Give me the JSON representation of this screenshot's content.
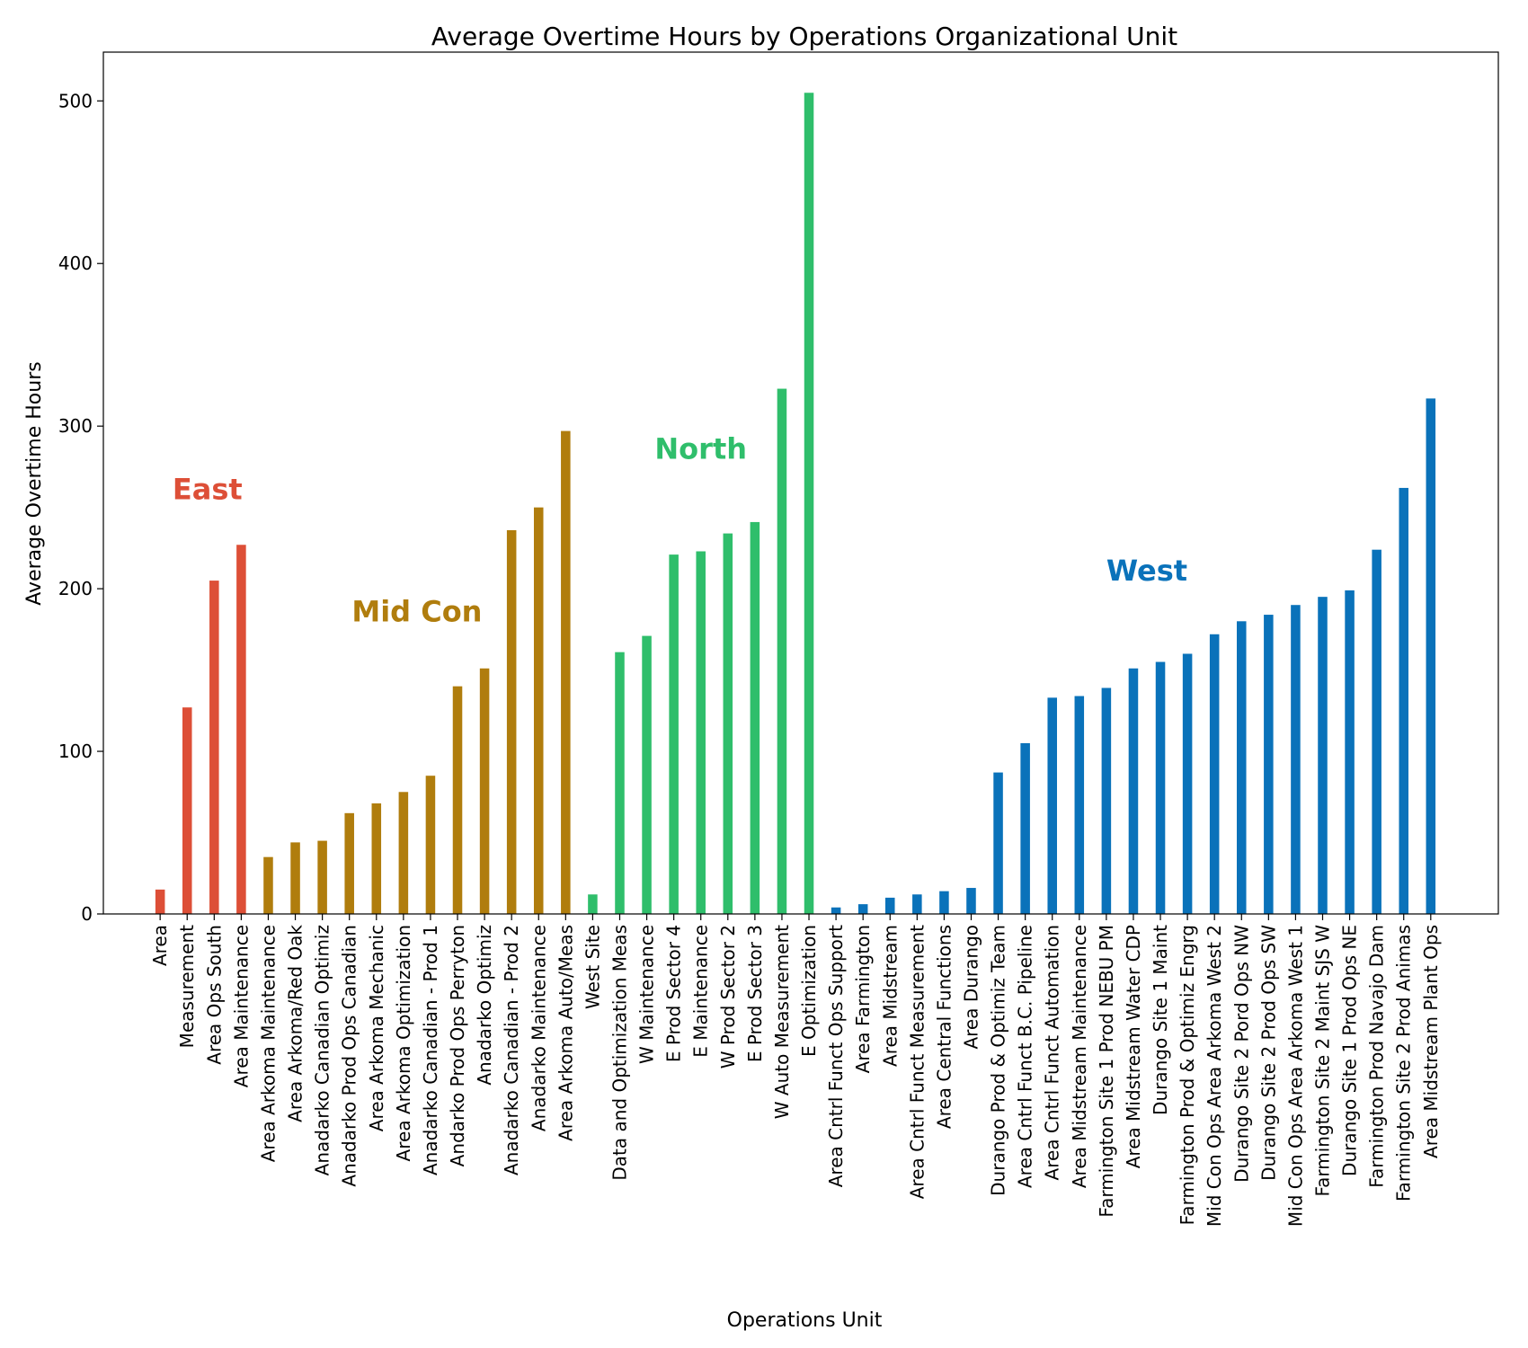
{
  "chart_data": {
    "type": "bar",
    "title": "Average Overtime Hours by Operations Organizational Unit",
    "xlabel": "Operations Unit",
    "ylabel": "Average Overtime Hours",
    "ylim": [
      0,
      530
    ],
    "yticks": [
      0,
      100,
      200,
      300,
      400,
      500
    ],
    "grid": false,
    "groups": [
      {
        "name": "East",
        "color": "#dd4f37",
        "label_x": 1.75,
        "label_y": 255
      },
      {
        "name": "Mid Con",
        "color": "#b07d0d",
        "label_x": 9.5,
        "label_y": 180
      },
      {
        "name": "North",
        "color": "#2fbe6b",
        "label_x": 20.0,
        "label_y": 280
      },
      {
        "name": "West",
        "color": "#0a72ba",
        "label_x": 36.5,
        "label_y": 205
      }
    ],
    "categories": [
      "Area",
      "Measurement",
      "Area Ops South",
      "Area Maintenance",
      "Area Arkoma Maintenance",
      "Area Arkoma/Red Oak",
      "Anadarko Canadian Optimiz",
      "Anadarko Prod Ops Canadian",
      "Area Arkoma Mechanic",
      "Area Arkoma Optimization",
      "Anadarko Canadian - Prod 1",
      "Andarko Prod Ops Perryton",
      "Anadarko Optimiz",
      "Anadarko Canadian - Prod 2",
      "Anadarko Maintenance",
      "Area Arkoma Auto/Meas",
      "West Site",
      "Data and Optimization Meas",
      "W Maintenance",
      "E Prod Sector 4",
      "E Maintenance",
      "W Prod Sector 2",
      "E Prod Sector 3",
      "W Auto Measurement",
      "E Optimization",
      "Area Cntrl Funct Ops Support",
      "Area Farmington",
      "Area Midstream",
      "Area Cntrl Funct Measurement",
      "Area Central Functions",
      "Area Durango",
      "Durango Prod & Optimiz Team",
      "Area Cntrl Funct B.C. Pipeline",
      "Area Cntrl Funct Automation",
      "Area Midstream Maintenance",
      "Farmington Site 1 Prod NEBU PM",
      "Area Midstream Water CDP",
      "Durango Site 1 Maint",
      "Farmington Prod & Optimiz Engrg",
      "Mid Con Ops Area Arkoma West 2",
      "Durango Site 2 Pord Ops NW",
      "Durango Site 2 Prod Ops SW",
      "Mid Con Ops Area Arkoma West 1",
      "Farmington Site 2 Maint SJS W",
      "Durango Site 1 Prod Ops NE",
      "Farmington Prod Navajo Dam",
      "Farmington Site 2 Prod Animas",
      "Area Midstream Plant Ops"
    ],
    "values": [
      15,
      127,
      205,
      227,
      35,
      44,
      45,
      62,
      68,
      75,
      85,
      140,
      151,
      236,
      250,
      297,
      12,
      161,
      171,
      221,
      223,
      234,
      241,
      323,
      505,
      4,
      6,
      10,
      12,
      14,
      16,
      87,
      105,
      133,
      134,
      139,
      151,
      155,
      160,
      172,
      180,
      184,
      190,
      195,
      199,
      224,
      262,
      317
    ],
    "group_index": [
      0,
      0,
      0,
      0,
      1,
      1,
      1,
      1,
      1,
      1,
      1,
      1,
      1,
      1,
      1,
      1,
      2,
      2,
      2,
      2,
      2,
      2,
      2,
      2,
      2,
      3,
      3,
      3,
      3,
      3,
      3,
      3,
      3,
      3,
      3,
      3,
      3,
      3,
      3,
      3,
      3,
      3,
      3,
      3,
      3,
      3,
      3,
      3
    ]
  }
}
